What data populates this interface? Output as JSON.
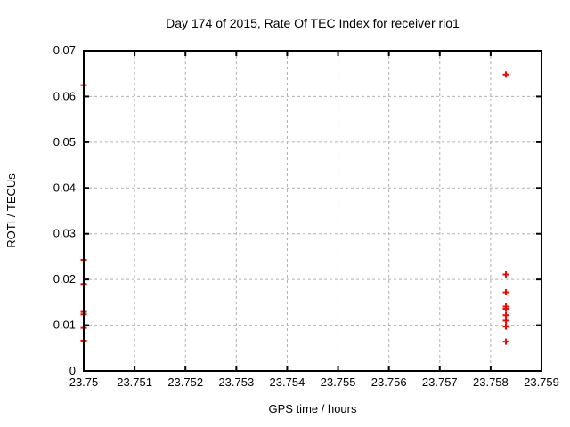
{
  "chart_data": {
    "type": "scatter",
    "title": "Day 174 of 2015, Rate Of TEC Index for receiver rio1",
    "xlabel": "GPS time / hours",
    "ylabel": "ROTI / TECUs",
    "xlim": [
      23.75,
      23.759
    ],
    "ylim": [
      0,
      0.07
    ],
    "grid": "dotted",
    "legend": "none",
    "marker": "plus",
    "marker_color": "#ff0000",
    "grid_color": "#b0b0b0",
    "frame_color": "#000000",
    "xticks": [
      {
        "value": 23.75,
        "label": "23.75"
      },
      {
        "value": 23.751,
        "label": "23.751"
      },
      {
        "value": 23.752,
        "label": "23.752"
      },
      {
        "value": 23.753,
        "label": "23.753"
      },
      {
        "value": 23.754,
        "label": "23.754"
      },
      {
        "value": 23.755,
        "label": "23.755"
      },
      {
        "value": 23.756,
        "label": "23.756"
      },
      {
        "value": 23.757,
        "label": "23.757"
      },
      {
        "value": 23.758,
        "label": "23.758"
      },
      {
        "value": 23.759,
        "label": "23.759"
      }
    ],
    "yticks": [
      {
        "value": 0.0,
        "label": "0"
      },
      {
        "value": 0.01,
        "label": "0.01"
      },
      {
        "value": 0.02,
        "label": "0.02"
      },
      {
        "value": 0.03,
        "label": "0.03"
      },
      {
        "value": 0.04,
        "label": "0.04"
      },
      {
        "value": 0.05,
        "label": "0.05"
      },
      {
        "value": 0.06,
        "label": "0.06"
      },
      {
        "value": 0.07,
        "label": "0.07"
      }
    ],
    "series": [
      {
        "name": "ROTI",
        "points": [
          [
            23.75,
            0.0625
          ],
          [
            23.75,
            0.0243
          ],
          [
            23.75,
            0.019
          ],
          [
            23.75,
            0.0129
          ],
          [
            23.75,
            0.0124
          ],
          [
            23.75,
            0.0094
          ],
          [
            23.75,
            0.0066
          ],
          [
            23.7583,
            0.0648
          ],
          [
            23.7583,
            0.0211
          ],
          [
            23.7583,
            0.0172
          ],
          [
            23.7583,
            0.0141
          ],
          [
            23.7583,
            0.0136
          ],
          [
            23.7583,
            0.0122
          ],
          [
            23.7583,
            0.011
          ],
          [
            23.7583,
            0.0097
          ],
          [
            23.7583,
            0.0064
          ]
        ]
      }
    ]
  }
}
